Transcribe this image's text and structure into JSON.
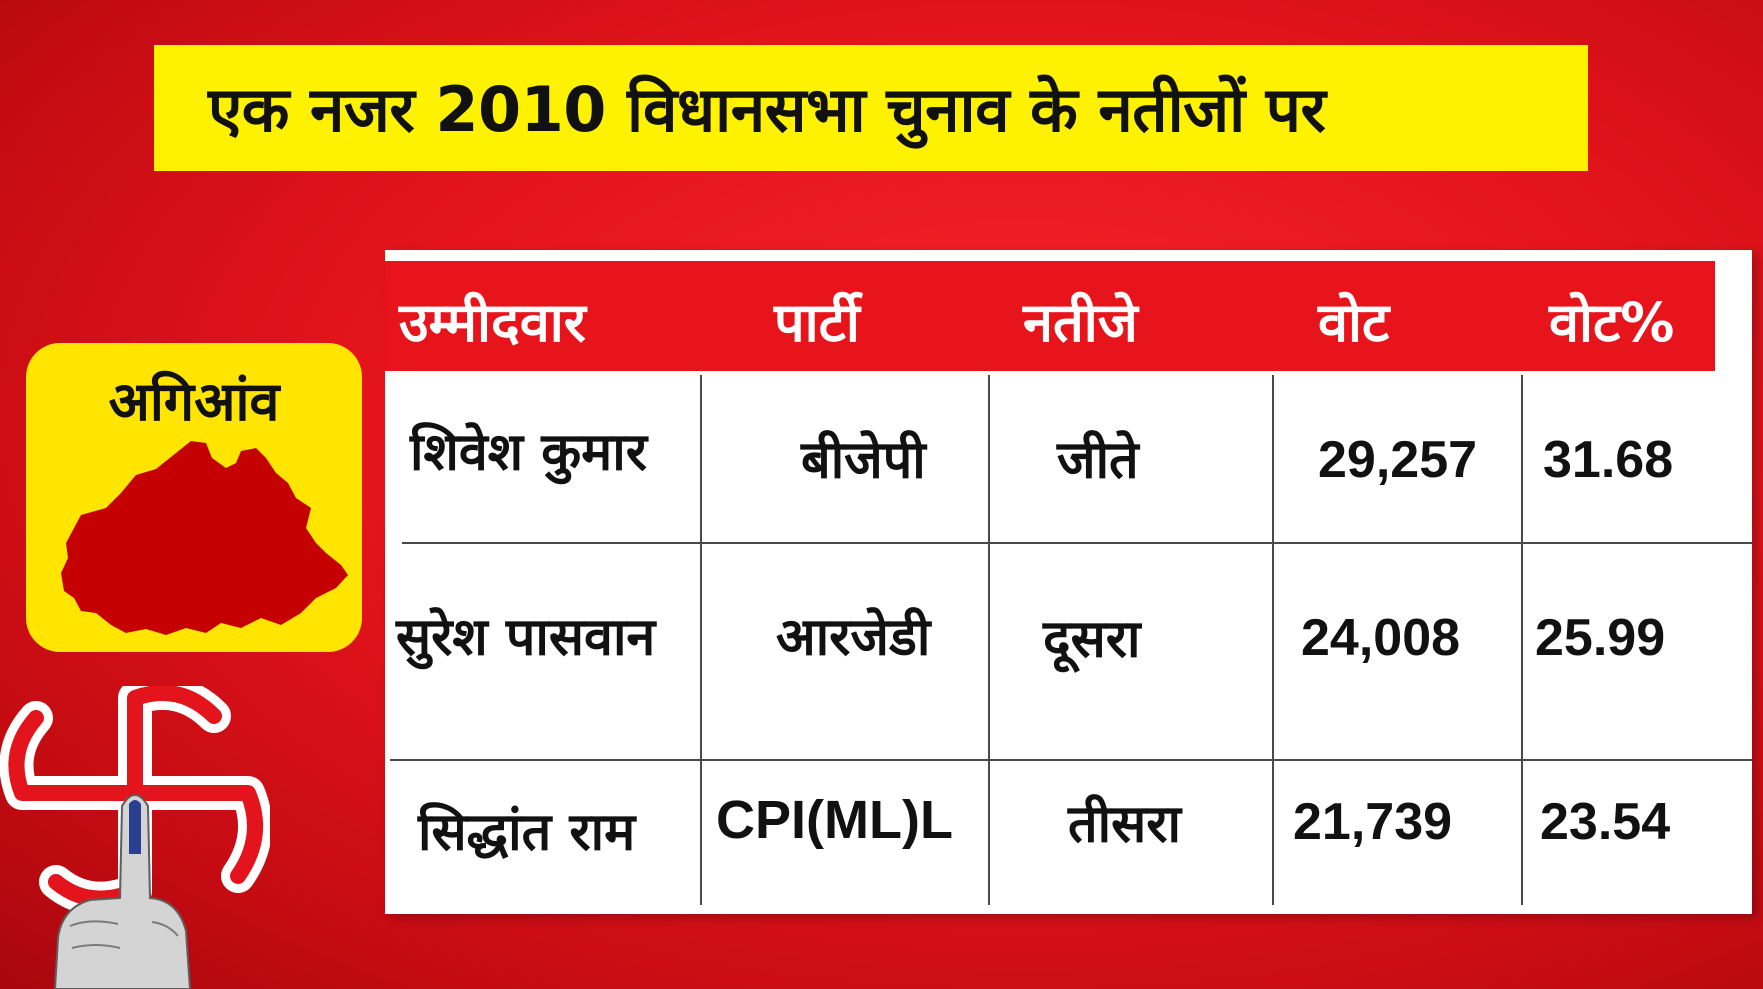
{
  "title": "एक नजर 2010 विधानसभा चुनाव के नतीजों पर",
  "constituency": {
    "name": "अगिआंव"
  },
  "table": {
    "headers": [
      "उम्मीदवार",
      "पार्टी",
      "नतीजे",
      "वोट",
      "वोट%"
    ],
    "rows": [
      [
        "शिवेश कुमार",
        "बीजेपी",
        "जीते",
        "29,257",
        "31.68"
      ],
      [
        "सुरेश पासवान",
        "आरजेडी",
        "दूसरा",
        "24,008",
        "25.99"
      ],
      [
        "सिद्धांत राम",
        "CPI(ML)L",
        "तीसरा",
        "21,739",
        "23.54"
      ]
    ]
  },
  "colors": {
    "background": "#e5141c",
    "banner": "#fff200",
    "card": "#ffe500",
    "header_band": "#e8141b",
    "map": "#c40000",
    "text": "#111111",
    "ink": "#2b3f8f"
  },
  "icons": {
    "map": "constituency-map-icon",
    "symbol": "election-symbol-icon",
    "hand": "inked-finger-hand-icon"
  }
}
